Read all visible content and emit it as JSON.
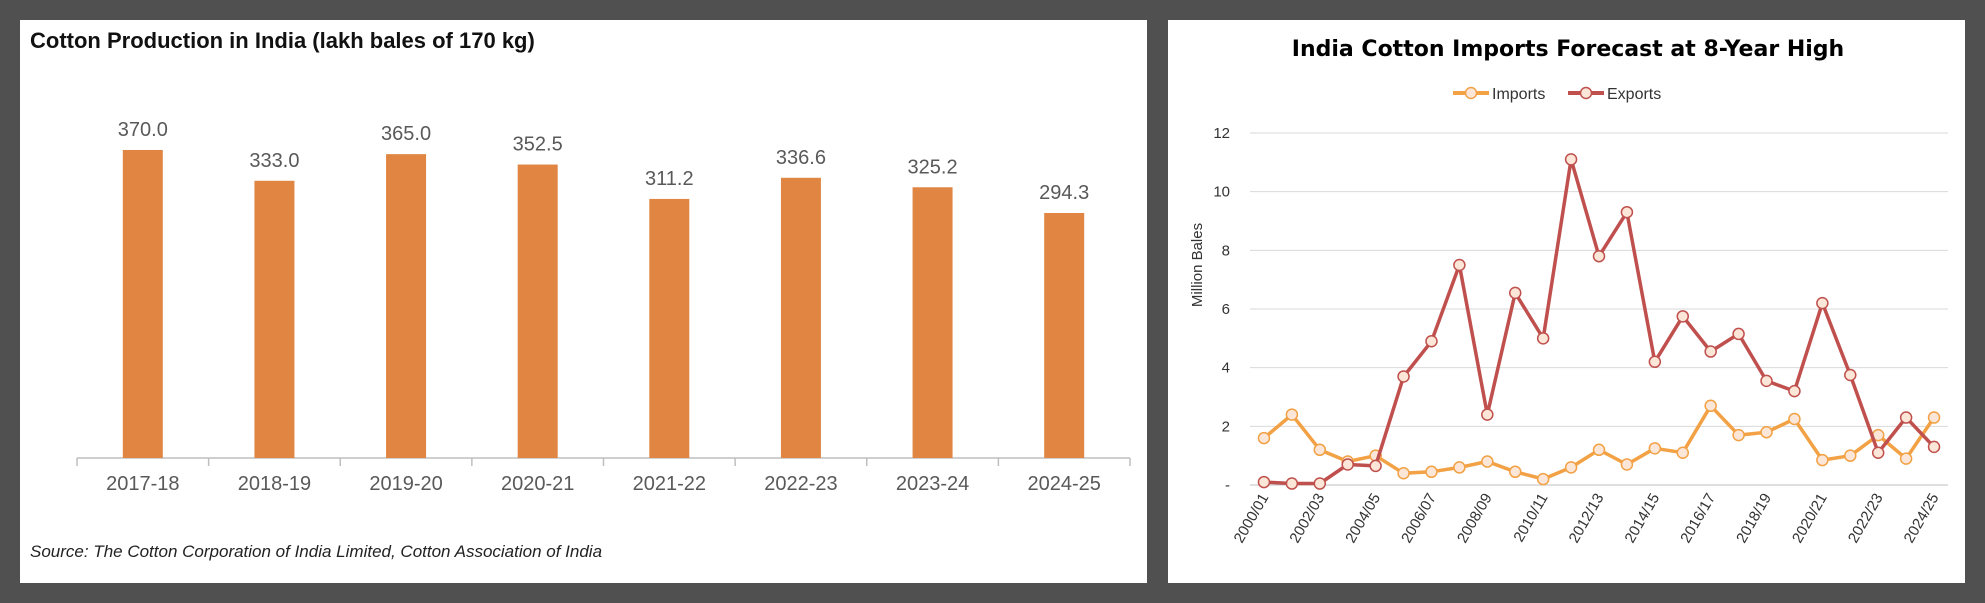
{
  "colors": {
    "bar": "#E08542",
    "imports": "#F2A145",
    "exports": "#C0504D",
    "marker_fill": "#FBE6D8",
    "axis": "#BFBFBF",
    "grid": "#D9D9D9",
    "text": "#595959"
  },
  "left_chart": {
    "title": "Cotton Production in India (lakh bales of 170 kg)",
    "source": "Source: The Cotton Corporation of India Limited, Cotton Association of India"
  },
  "right_chart": {
    "title": "India Cotton Imports Forecast at 8-Year High",
    "legend": {
      "imports": "Imports",
      "exports": "Exports"
    },
    "ylabel": "Million Bales"
  },
  "chart_data": [
    {
      "type": "bar",
      "title": "Cotton Production in India (lakh bales of 170 kg)",
      "categories": [
        "2017-18",
        "2018-19",
        "2019-20",
        "2020-21",
        "2021-22",
        "2022-23",
        "2023-24",
        "2024-25"
      ],
      "values": [
        370.0,
        333.0,
        365.0,
        352.5,
        311.2,
        336.6,
        325.2,
        294.3
      ],
      "value_labels": [
        "370.0",
        "333.0",
        "365.0",
        "352.5",
        "311.2",
        "336.6",
        "325.2",
        "294.3"
      ],
      "xlabel": "",
      "ylabel": "",
      "ylim": [
        0,
        400
      ],
      "grid": false
    },
    {
      "type": "line",
      "title": "India Cotton Imports Forecast at 8-Year High",
      "x": [
        "2000/01",
        "2001/02",
        "2002/03",
        "2003/04",
        "2004/05",
        "2005/06",
        "2006/07",
        "2007/08",
        "2008/09",
        "2009/10",
        "2010/11",
        "2011/12",
        "2012/13",
        "2013/14",
        "2014/15",
        "2015/16",
        "2016/17",
        "2017/18",
        "2018/19",
        "2019/20",
        "2020/21",
        "2021/22",
        "2022/23",
        "2023/24",
        "2024/25"
      ],
      "x_tick_labels": [
        "2000/01",
        "2002/03",
        "2004/05",
        "2006/07",
        "2008/09",
        "2010/11",
        "2012/13",
        "2014/15",
        "2016/17",
        "2018/19",
        "2020/21",
        "2022/23",
        "2024/25"
      ],
      "series": [
        {
          "name": "Imports",
          "values": [
            1.6,
            2.4,
            1.2,
            0.8,
            1.0,
            0.4,
            0.45,
            0.6,
            0.8,
            0.45,
            0.2,
            0.6,
            1.2,
            0.7,
            1.25,
            1.1,
            2.7,
            1.7,
            1.8,
            2.25,
            0.85,
            1.0,
            1.7,
            0.9,
            2.3
          ]
        },
        {
          "name": "Exports",
          "values": [
            0.1,
            0.05,
            0.05,
            0.7,
            0.65,
            3.7,
            4.9,
            7.5,
            2.4,
            6.55,
            5.0,
            11.1,
            7.8,
            9.3,
            4.2,
            5.75,
            4.55,
            5.15,
            3.55,
            3.2,
            6.2,
            3.75,
            1.1,
            2.3,
            1.3
          ]
        }
      ],
      "y_tick_labels": [
        "-",
        "2",
        "4",
        "6",
        "8",
        "10",
        "12"
      ],
      "ylabel": "Million Bales",
      "ylim": [
        0,
        12
      ],
      "grid": true,
      "legend_position": "top-center"
    }
  ]
}
